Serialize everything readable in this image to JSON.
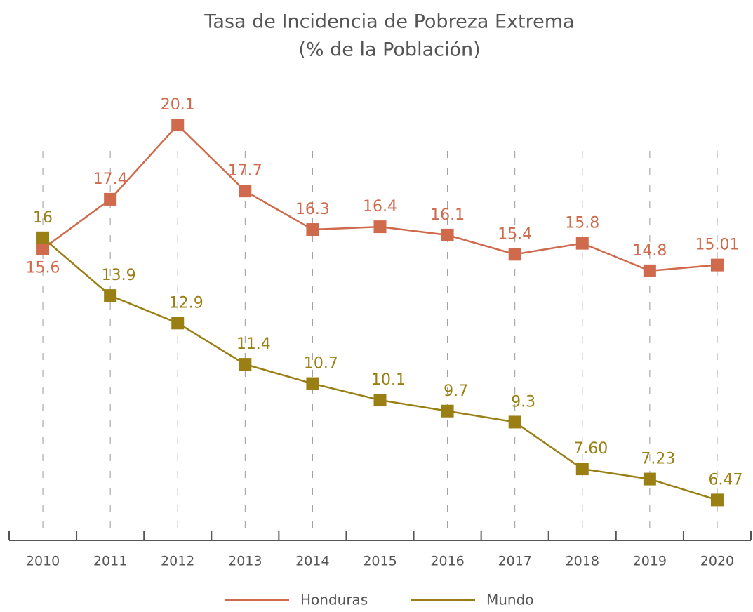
{
  "chart_data": {
    "type": "line",
    "title": "Tasa de Incidencia de Pobreza Extrema",
    "subtitle": "(% de la Población)",
    "categories": [
      "2010",
      "2011",
      "2012",
      "2013",
      "2014",
      "2015",
      "2016",
      "2017",
      "2018",
      "2019",
      "2020"
    ],
    "series": [
      {
        "name": "Honduras",
        "color": "#d06a4c",
        "values": [
          15.6,
          17.4,
          20.1,
          17.7,
          16.3,
          16.4,
          16.1,
          15.4,
          15.8,
          14.8,
          15.01
        ]
      },
      {
        "name": "Mundo",
        "color": "#9a7f14",
        "values": [
          16,
          13.9,
          12.9,
          11.4,
          10.7,
          10.1,
          9.7,
          9.3,
          7.6,
          7.23,
          6.47
        ],
        "value_labels": [
          "16",
          "13.9",
          "12.9",
          "11.4",
          "10.7",
          "10.1",
          "9.7",
          "9.3",
          "7.60",
          "7.23",
          "6.47"
        ]
      }
    ],
    "ylim": [
      5,
      22
    ],
    "grid": true,
    "legend": "bottom"
  }
}
